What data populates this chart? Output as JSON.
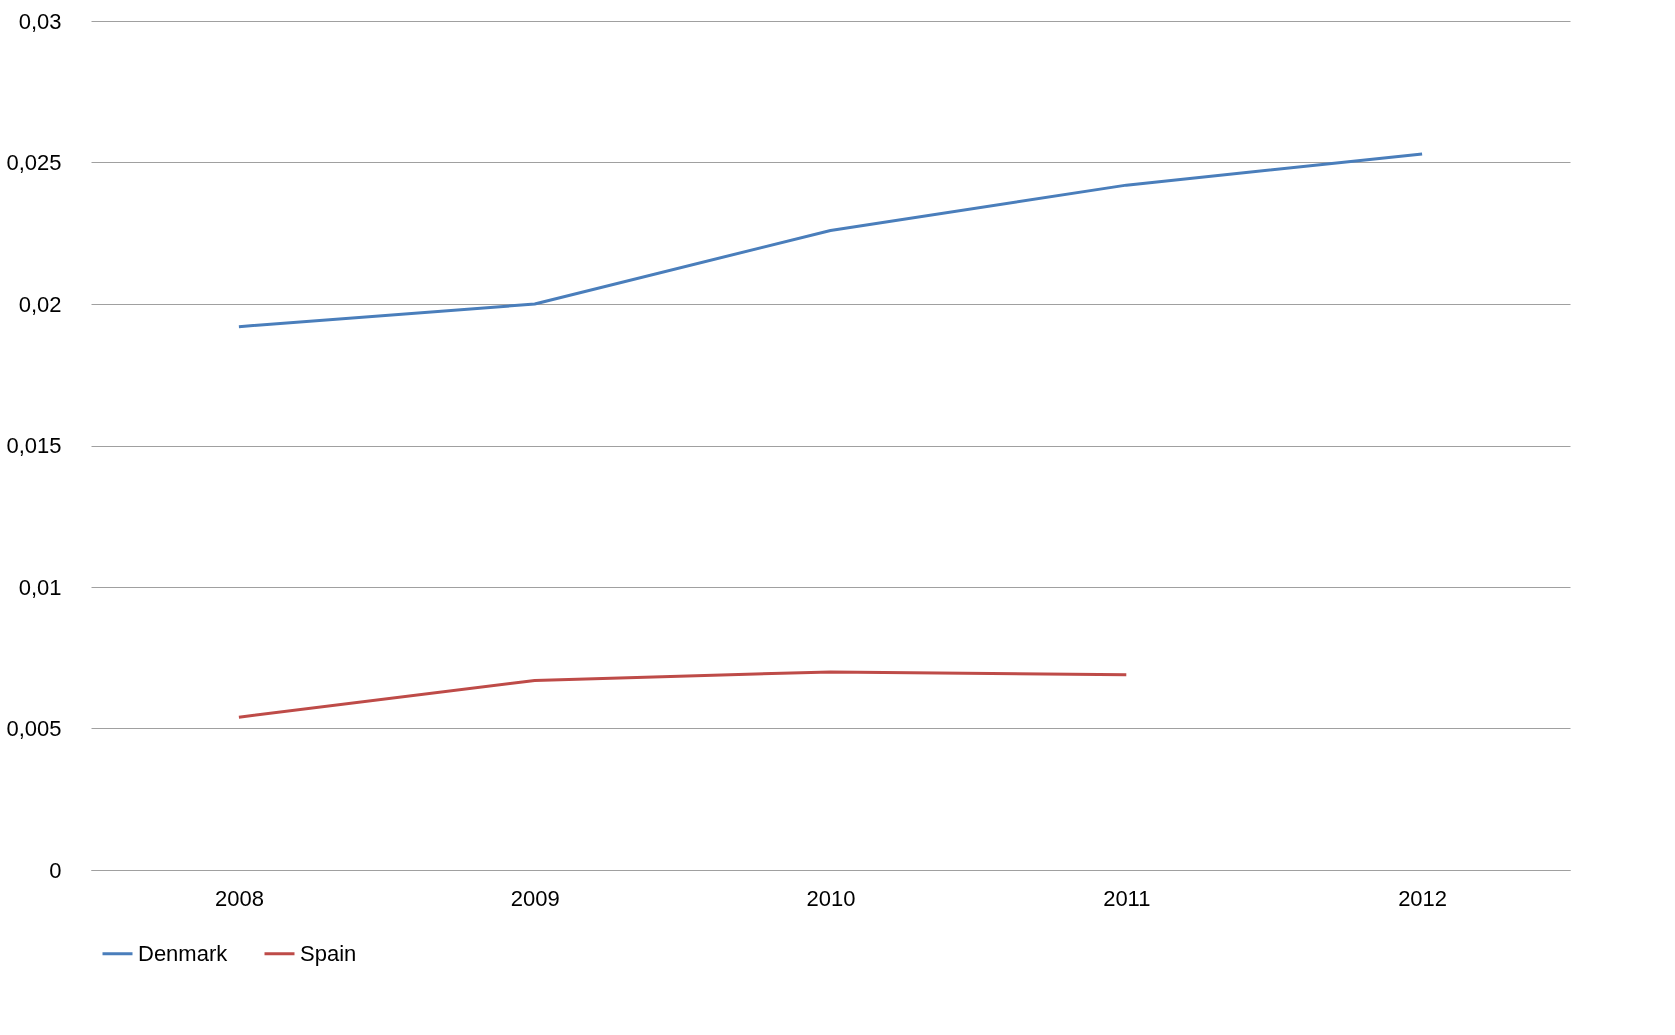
{
  "chart_data": {
    "type": "line",
    "categories": [
      "2008",
      "2009",
      "2010",
      "2011",
      "2012"
    ],
    "series": [
      {
        "name": "Denmark",
        "color": "#4a7ebb",
        "values": [
          0.0192,
          0.02,
          0.0226,
          0.0242,
          0.0253
        ]
      },
      {
        "name": "Spain",
        "color": "#be4b48",
        "values": [
          0.0054,
          0.0067,
          0.007,
          0.0069,
          null
        ]
      }
    ],
    "ylim": [
      0,
      0.03
    ],
    "yticks": [
      0,
      {
        "value": 0.005,
        "label": "0,005"
      },
      {
        "value": 0.01,
        "label": "0,01"
      },
      {
        "value": 0.015,
        "label": "0,015"
      },
      {
        "value": 0.02,
        "label": "0,02"
      },
      {
        "value": 0.025,
        "label": "0,025"
      },
      {
        "value": 0.03,
        "label": "0,03"
      }
    ],
    "grid": "y",
    "legend": "bottom",
    "marker": "none",
    "line_style": "solid"
  }
}
